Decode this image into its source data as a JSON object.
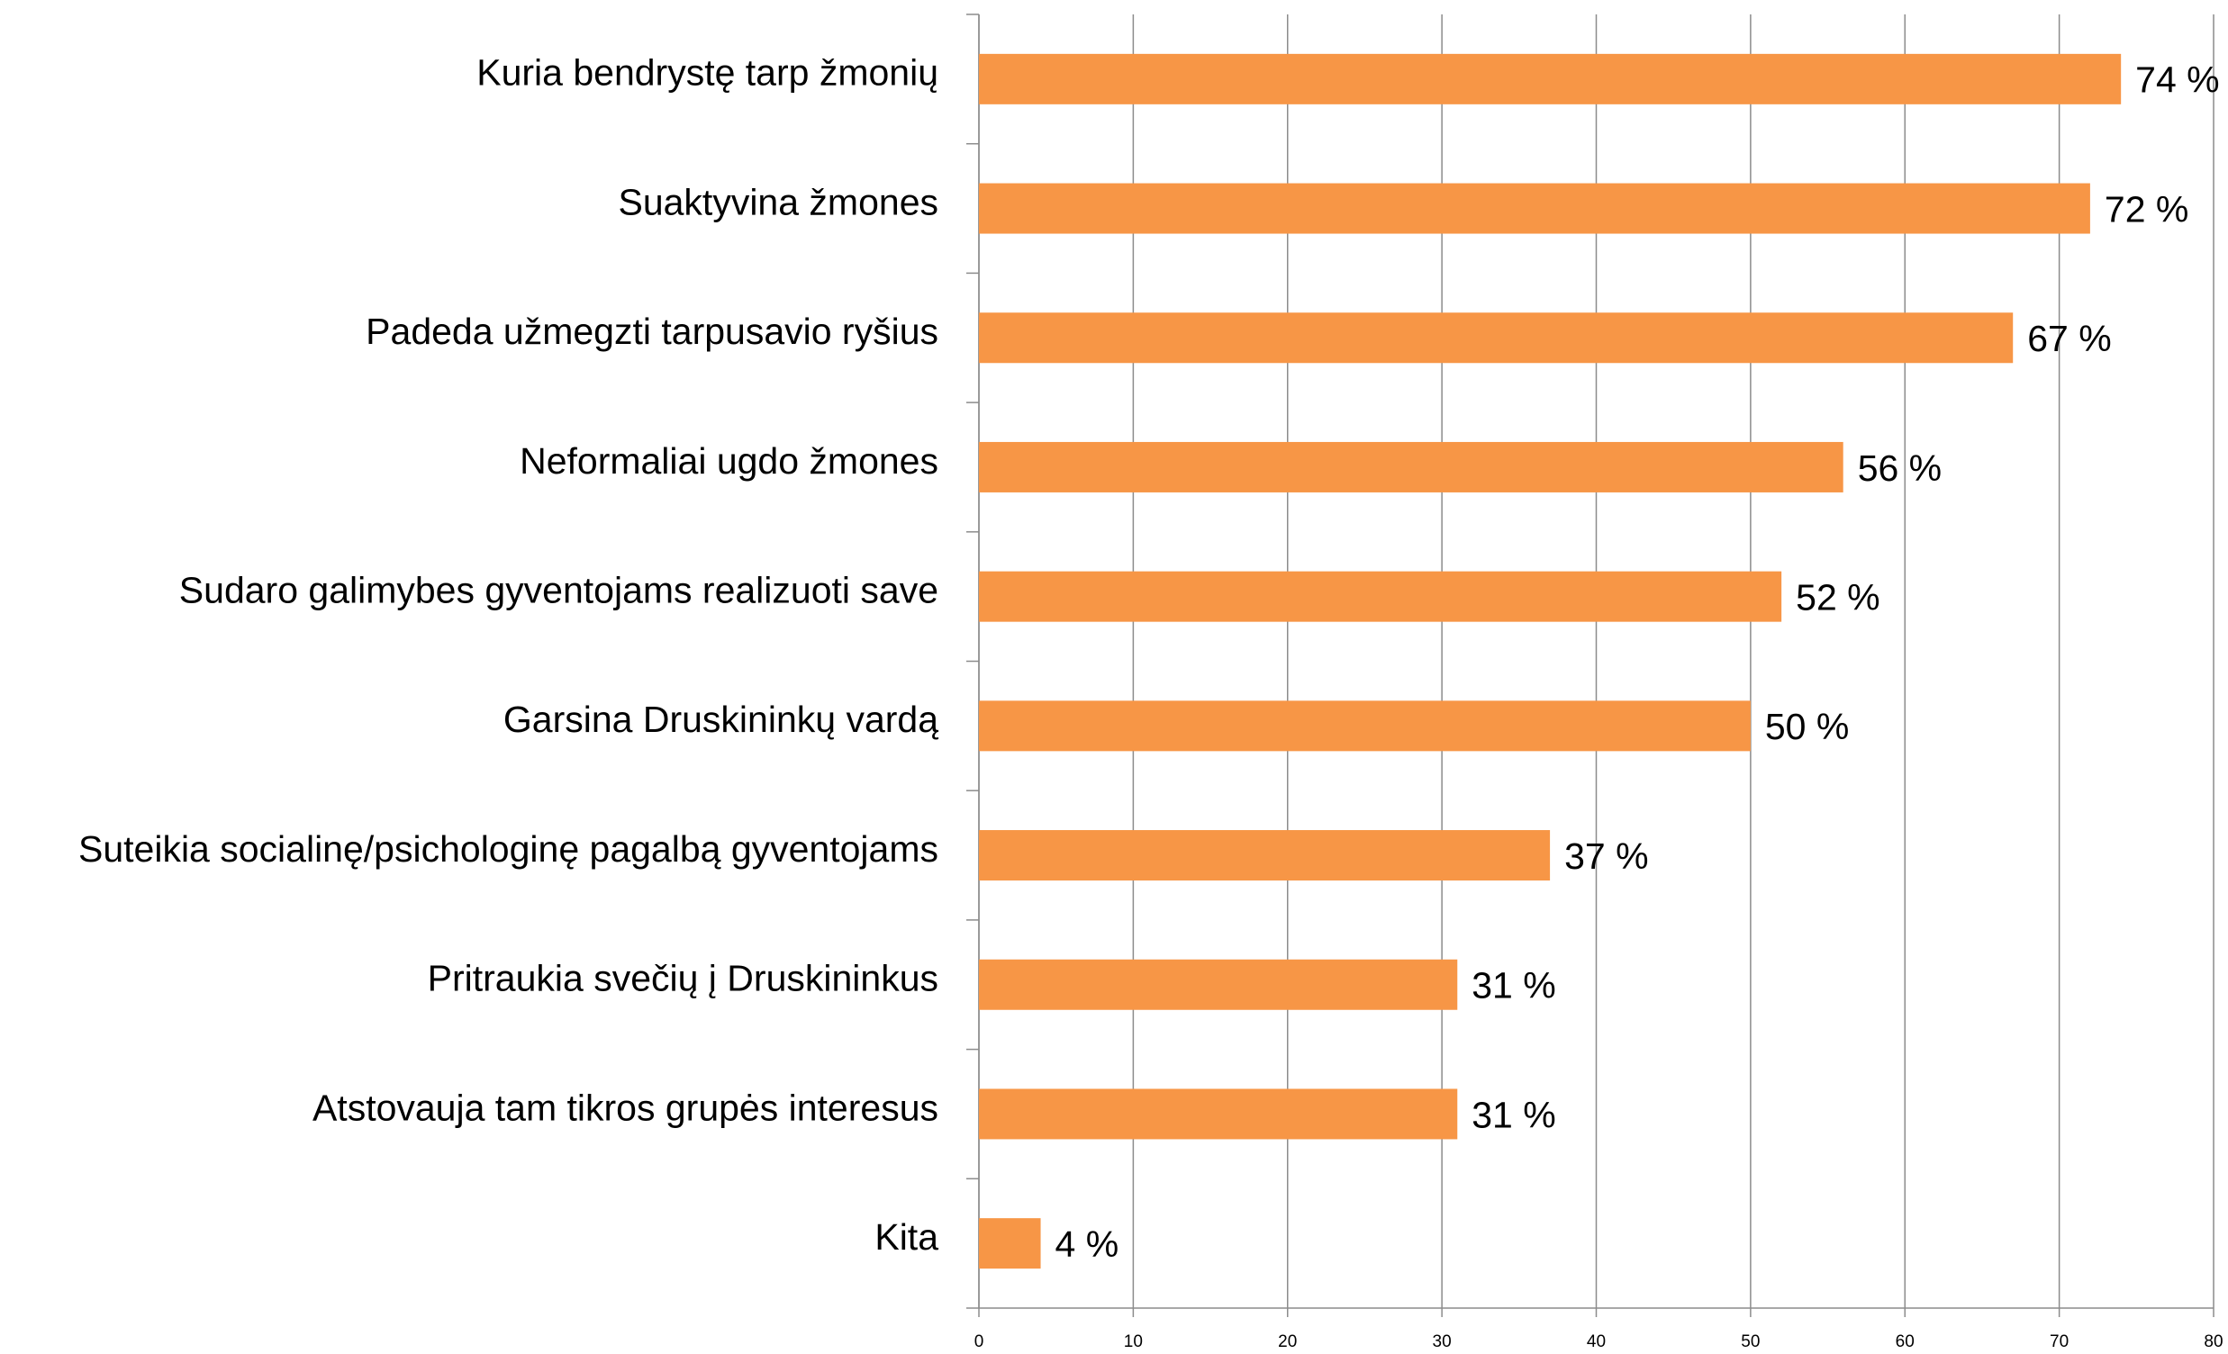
{
  "chart_data": {
    "type": "hbar",
    "categories": [
      "Kuria bendrystę tarp žmonių",
      "Suaktyvina žmones",
      "Padeda užmegzti tarpusavio ryšius",
      "Neformaliai ugdo žmones",
      "Sudaro galimybes gyventojams realizuoti save",
      "Garsina Druskininkų vardą",
      "Suteikia socialinę/psichologinę pagalbą gyventojams",
      "Pritraukia svečių į Druskininkus",
      "Atstovauja tam tikros grupės interesus",
      "Kita"
    ],
    "values": [
      74,
      72,
      67,
      56,
      52,
      50,
      37,
      31,
      31,
      4
    ],
    "value_labels": [
      "74 %",
      "72 %",
      "67 %",
      "56 %",
      "52 %",
      "50 %",
      "37 %",
      "31 %",
      "31 %",
      "4 %"
    ],
    "color": "#f79646",
    "xlim": [
      0,
      80
    ],
    "xticks": [
      0,
      10,
      20,
      30,
      40,
      50,
      60,
      70,
      80
    ],
    "grid": true
  }
}
